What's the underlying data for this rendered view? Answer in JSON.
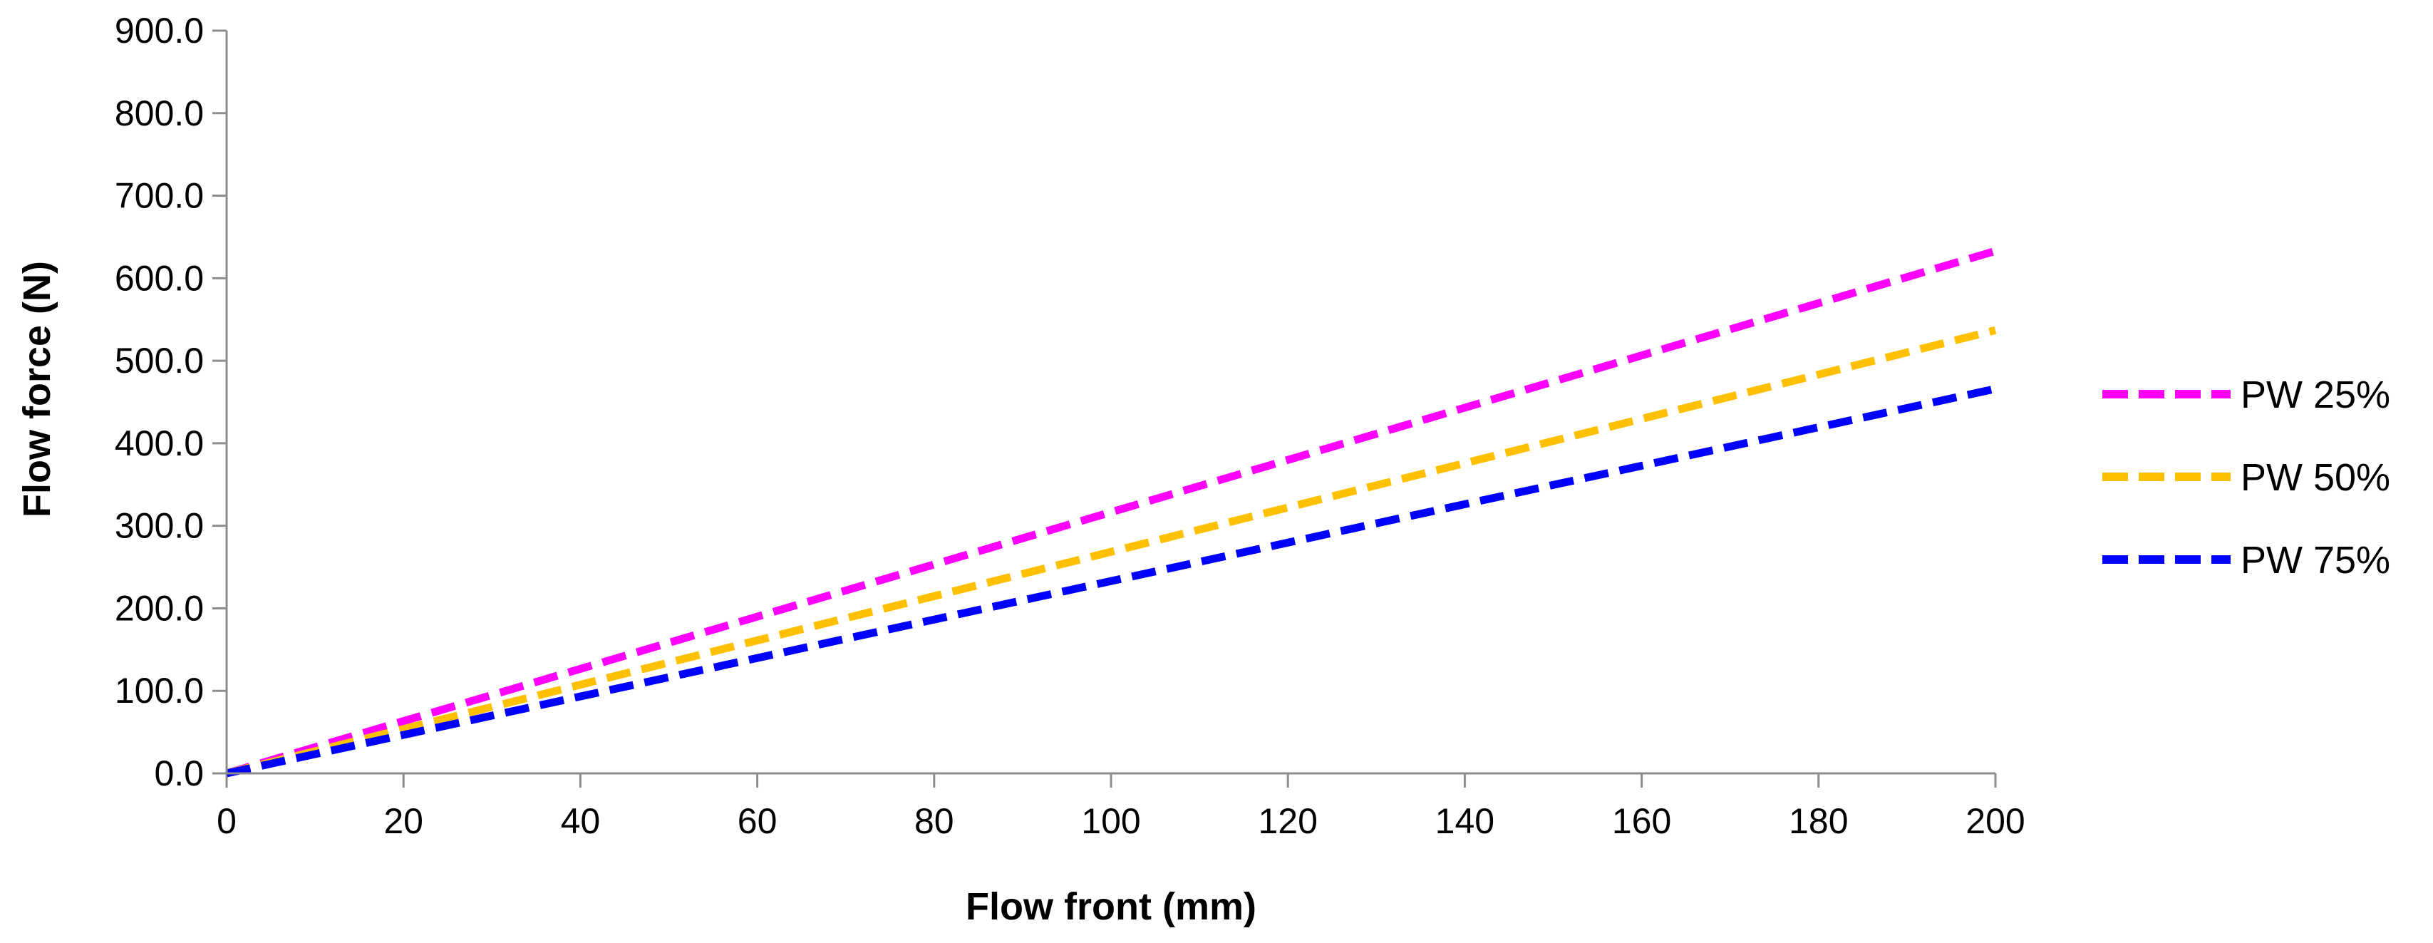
{
  "chart_data": {
    "type": "line",
    "title": "",
    "xlabel": "Flow front (mm)",
    "ylabel": "Flow force (N)",
    "xlim": [
      0,
      200
    ],
    "ylim": [
      0,
      900
    ],
    "x_ticks": [
      0,
      20,
      40,
      60,
      80,
      100,
      120,
      140,
      160,
      180,
      200
    ],
    "x_tick_labels": [
      "0",
      "20",
      "40",
      "60",
      "80",
      "100",
      "120",
      "140",
      "160",
      "180",
      "200"
    ],
    "y_ticks": [
      0,
      100,
      200,
      300,
      400,
      500,
      600,
      700,
      800,
      900
    ],
    "y_tick_labels": [
      "0.0",
      "100.0",
      "200.0",
      "300.0",
      "400.0",
      "500.0",
      "600.0",
      "700.0",
      "800.0",
      "900.0"
    ],
    "grid": false,
    "legend_position": "right",
    "x": [
      0,
      200
    ],
    "series": [
      {
        "name": "PW 25%",
        "color": "#ff00ff",
        "line_style": "dashed",
        "values": [
          0,
          633
        ]
      },
      {
        "name": "PW 50%",
        "color": "#ffc000",
        "line_style": "dashed",
        "values": [
          0,
          537
        ]
      },
      {
        "name": "PW 75%",
        "color": "#0000ff",
        "line_style": "dashed",
        "values": [
          0,
          466
        ]
      }
    ]
  }
}
